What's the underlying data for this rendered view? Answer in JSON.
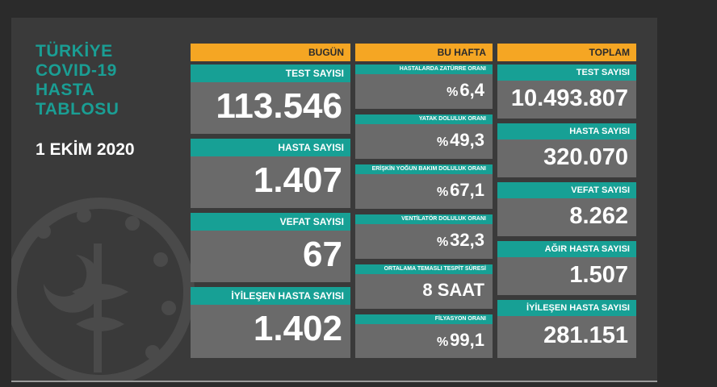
{
  "title_lines": [
    "TÜRKİYE",
    "COVID-19",
    "HASTA",
    "TABLOSU"
  ],
  "date": "1 EKİM 2020",
  "headers": {
    "today": "BUGÜN",
    "week": "BU HAFTA",
    "total": "TOPLAM"
  },
  "today": [
    {
      "label": "TEST SAYISI",
      "value": "113.546"
    },
    {
      "label": "HASTA SAYISI",
      "value": "1.407"
    },
    {
      "label": "VEFAT SAYISI",
      "value": "67"
    },
    {
      "label": "İYİLEŞEN HASTA SAYISI",
      "value": "1.402"
    }
  ],
  "week": [
    {
      "label": "HASTALARDA ZATÜRRE ORANI",
      "prefix": "%",
      "value": "6,4"
    },
    {
      "label": "YATAK DOLULUK ORANI",
      "prefix": "%",
      "value": "49,3"
    },
    {
      "label": "ERİŞKİN YOĞUN BAKIM DOLULUK ORANI",
      "prefix": "%",
      "value": "67,1"
    },
    {
      "label": "VENTİLATÖR DOLULUK ORANI",
      "prefix": "%",
      "value": "32,3"
    },
    {
      "label": "ORTALAMA TEMASLI TESPİT SÜRESİ",
      "prefix": "",
      "value": "8 SAAT"
    },
    {
      "label": "FİLYASYON ORANI",
      "prefix": "%",
      "value": "99,1"
    }
  ],
  "total": [
    {
      "label": "TEST SAYISI",
      "value": "10.493.807"
    },
    {
      "label": "HASTA SAYISI",
      "value": "320.070"
    },
    {
      "label": "VEFAT SAYISI",
      "value": "8.262"
    },
    {
      "label": "AĞIR HASTA SAYISI",
      "value": "1.507"
    },
    {
      "label": "İYİLEŞEN HASTA SAYISI",
      "value": "281.151"
    }
  ],
  "colors": {
    "header": "#f5a623",
    "label": "#17a095",
    "card": "#6a6a6a",
    "title": "#1a9e94"
  }
}
